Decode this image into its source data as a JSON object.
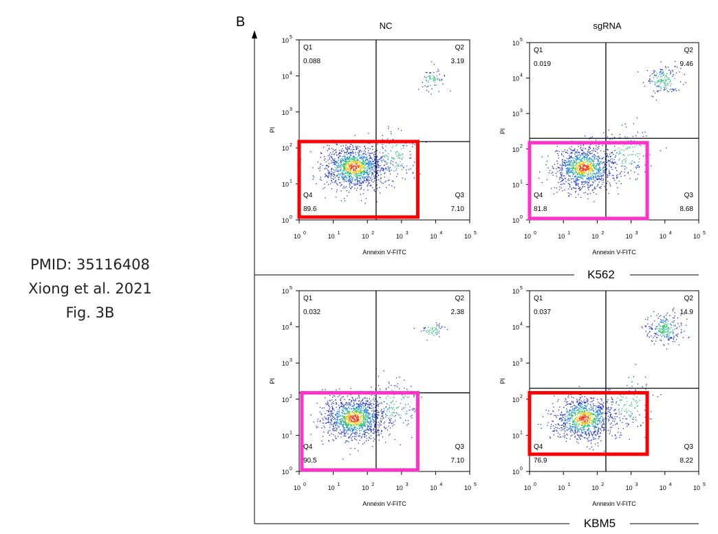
{
  "caption": {
    "line1": "PMID: 35116408",
    "line2": "Xiong et al. 2021",
    "line3": "Fig. 3B"
  },
  "panel_letter": "B",
  "columns": [
    "NC",
    "sgRNA"
  ],
  "rows": [
    "K562",
    "KBM5"
  ],
  "colors": {
    "highlight_red": "#ff0000",
    "highlight_magenta": "#ff33cc",
    "density_low": "#1428d8",
    "density_mid": "#22c070",
    "density_high": "#ff2a00"
  },
  "chart_data": [
    {
      "type": "scatter",
      "cell_line": "K562",
      "condition": "NC",
      "xlabel": "Annexin V-FITC",
      "ylabel": "PI",
      "log_scale": true,
      "xlim": [
        1,
        100000
      ],
      "ylim": [
        1,
        100000
      ],
      "x_ticks": [
        "10",
        "10",
        "10",
        "10",
        "10",
        "10"
      ],
      "x_tick_exps": [
        "0",
        "1",
        "2",
        "3",
        "4",
        "5"
      ],
      "y_ticks": [
        "10",
        "10",
        "10",
        "10",
        "10",
        "10"
      ],
      "y_tick_exps": [
        "0",
        "1",
        "2",
        "3",
        "4",
        "5"
      ],
      "gate": {
        "x": 180,
        "y": 150
      },
      "quadrants": {
        "Q1": "0.088",
        "Q2": "3.19",
        "Q3": "7.10",
        "Q4": "89.6"
      },
      "quadrant_names": {
        "Q1": "Q1",
        "Q2": "Q2",
        "Q3": "Q3",
        "Q4": "Q4"
      },
      "highlight": {
        "color": "red",
        "x_range": [
          1,
          3000
        ],
        "y_range": [
          1.2,
          150
        ]
      },
      "clusters": [
        {
          "x": 40,
          "y": 30,
          "spread_x": 0.45,
          "spread_y": 0.3,
          "weight": 0.85
        },
        {
          "x": 600,
          "y": 60,
          "spread_x": 0.35,
          "spread_y": 0.35,
          "weight": 0.1
        },
        {
          "x": 8000,
          "y": 8000,
          "spread_x": 0.2,
          "spread_y": 0.15,
          "weight": 0.05
        }
      ]
    },
    {
      "type": "scatter",
      "cell_line": "K562",
      "condition": "sgRNA",
      "xlabel": "Annexin V-FITC",
      "ylabel": "PI",
      "log_scale": true,
      "xlim": [
        1,
        100000
      ],
      "ylim": [
        1,
        100000
      ],
      "x_ticks": [
        "10",
        "10",
        "10",
        "10",
        "10",
        "10"
      ],
      "x_tick_exps": [
        "0",
        "1",
        "2",
        "3",
        "4",
        "5"
      ],
      "y_ticks": [
        "10",
        "10",
        "10",
        "10",
        "10",
        "10"
      ],
      "y_tick_exps": [
        "0",
        "1",
        "2",
        "3",
        "4",
        "5"
      ],
      "gate": {
        "x": 180,
        "y": 200
      },
      "quadrants": {
        "Q1": "0.019",
        "Q2": "9.46",
        "Q3": "8.68",
        "Q4": "81.8"
      },
      "quadrant_names": {
        "Q1": "Q1",
        "Q2": "Q2",
        "Q3": "Q3",
        "Q4": "Q4"
      },
      "highlight": {
        "color": "magenta",
        "x_range": [
          1,
          3000
        ],
        "y_range": [
          1.1,
          150
        ]
      },
      "clusters": [
        {
          "x": 40,
          "y": 30,
          "spread_x": 0.45,
          "spread_y": 0.3,
          "weight": 0.78
        },
        {
          "x": 800,
          "y": 80,
          "spread_x": 0.35,
          "spread_y": 0.35,
          "weight": 0.1
        },
        {
          "x": 9000,
          "y": 9000,
          "spread_x": 0.25,
          "spread_y": 0.2,
          "weight": 0.12
        }
      ]
    },
    {
      "type": "scatter",
      "cell_line": "KBM5",
      "condition": "NC",
      "xlabel": "Annexin V-FITC",
      "ylabel": "PI",
      "log_scale": true,
      "xlim": [
        1,
        100000
      ],
      "ylim": [
        1,
        100000
      ],
      "x_ticks": [
        "10",
        "10",
        "10",
        "10",
        "10",
        "10"
      ],
      "x_tick_exps": [
        "0",
        "1",
        "2",
        "3",
        "4",
        "5"
      ],
      "y_ticks": [
        "10",
        "10",
        "10",
        "10",
        "10",
        "10"
      ],
      "y_tick_exps": [
        "0",
        "1",
        "2",
        "3",
        "4",
        "5"
      ],
      "gate": {
        "x": 180,
        "y": 150
      },
      "quadrants": {
        "Q1": "0.032",
        "Q2": "2.38",
        "Q3": "7.10",
        "Q4": "90.5"
      },
      "quadrant_names": {
        "Q1": "Q1",
        "Q2": "Q2",
        "Q3": "Q3",
        "Q4": "Q4"
      },
      "highlight": {
        "color": "magenta",
        "x_range": [
          1.2,
          3000
        ],
        "y_range": [
          1.1,
          150
        ]
      },
      "clusters": [
        {
          "x": 40,
          "y": 30,
          "spread_x": 0.45,
          "spread_y": 0.3,
          "weight": 0.86
        },
        {
          "x": 700,
          "y": 70,
          "spread_x": 0.35,
          "spread_y": 0.35,
          "weight": 0.1
        },
        {
          "x": 8000,
          "y": 8000,
          "spread_x": 0.2,
          "spread_y": 0.12,
          "weight": 0.04
        }
      ]
    },
    {
      "type": "scatter",
      "cell_line": "KBM5",
      "condition": "sgRNA",
      "xlabel": "Annexin V-FITC",
      "ylabel": "PI",
      "log_scale": true,
      "xlim": [
        1,
        100000
      ],
      "ylim": [
        1,
        100000
      ],
      "x_ticks": [
        "10",
        "10",
        "10",
        "10",
        "10",
        "10"
      ],
      "x_tick_exps": [
        "0",
        "1",
        "2",
        "3",
        "4",
        "5"
      ],
      "y_ticks": [
        "10",
        "10",
        "10",
        "10",
        "10",
        "10"
      ],
      "y_tick_exps": [
        "0",
        "1",
        "2",
        "3",
        "4",
        "5"
      ],
      "gate": {
        "x": 180,
        "y": 200
      },
      "quadrants": {
        "Q1": "0.037",
        "Q2": "14.9",
        "Q3": "8.22",
        "Q4": "76.9"
      },
      "quadrant_names": {
        "Q1": "Q1",
        "Q2": "Q2",
        "Q3": "Q3",
        "Q4": "Q4"
      },
      "highlight": {
        "color": "red",
        "x_range": [
          1,
          3000
        ],
        "y_range": [
          3,
          150
        ]
      },
      "clusters": [
        {
          "x": 40,
          "y": 30,
          "spread_x": 0.45,
          "spread_y": 0.3,
          "weight": 0.72
        },
        {
          "x": 800,
          "y": 80,
          "spread_x": 0.35,
          "spread_y": 0.35,
          "weight": 0.1
        },
        {
          "x": 10000,
          "y": 9000,
          "spread_x": 0.25,
          "spread_y": 0.2,
          "weight": 0.18
        }
      ]
    }
  ]
}
